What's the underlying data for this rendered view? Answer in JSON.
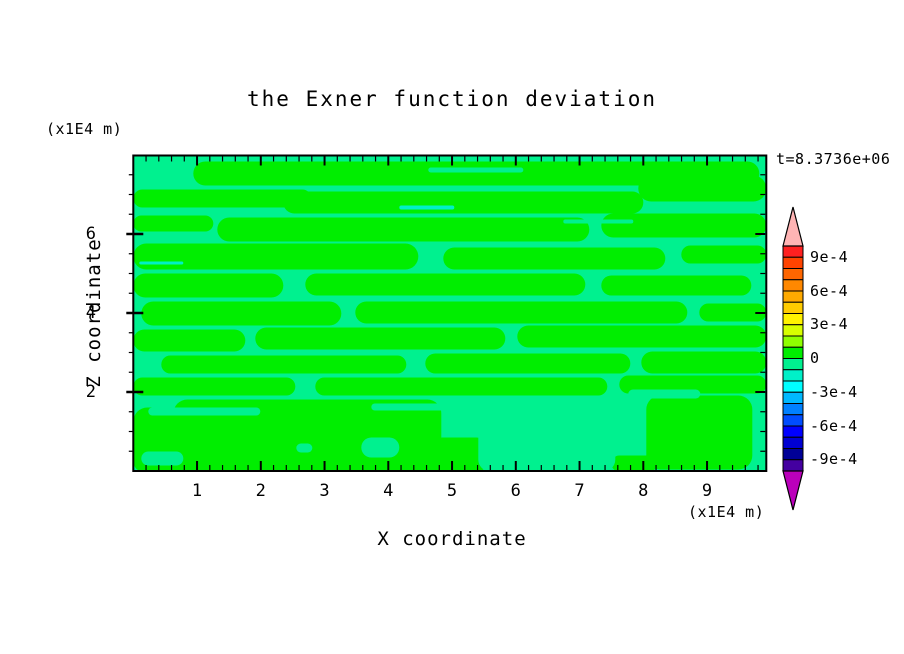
{
  "chart_data": {
    "type": "filled-contour",
    "title": "the Exner function deviation",
    "time_label": "t=8.3736e+06",
    "xlabel": "X coordinate",
    "ylabel": "Z coordinate",
    "x_unit_label": "(x1E4 m)",
    "y_unit_label": "(x1E4 m)",
    "xlim": [
      0,
      9.93
    ],
    "ylim": [
      0,
      8.0
    ],
    "x_major_ticks": [
      1,
      2,
      3,
      4,
      5,
      6,
      7,
      8,
      9
    ],
    "x_minor_step": 0.2,
    "y_major_ticks": [
      2,
      4,
      6
    ],
    "y_minor_step": 0.5,
    "grid": false,
    "legend_position": "right-colorbar",
    "colorbar": {
      "labels": [
        {
          "text": "9e-4",
          "value": 0.0009
        },
        {
          "text": "6e-4",
          "value": 0.0006
        },
        {
          "text": "3e-4",
          "value": 0.0003
        },
        {
          "text": "0",
          "value": 0
        },
        {
          "text": "-3e-4",
          "value": -0.0003
        },
        {
          "text": "-6e-4",
          "value": -0.0006
        },
        {
          "text": "-9e-4",
          "value": -0.0009
        }
      ],
      "top_value": 0.001,
      "bottom_value": -0.001,
      "segment_step": 0.0001,
      "colors_top_to_bottom": [
        "#ff2020",
        "#ff4300",
        "#ff6600",
        "#ff8800",
        "#ffaa00",
        "#ffcc00",
        "#fff200",
        "#d8ff00",
        "#8fff00",
        "#00ee00",
        "#00f18f",
        "#00f0c8",
        "#00ffff",
        "#00b8ff",
        "#0080ff",
        "#004cff",
        "#0000ff",
        "#0000d2",
        "#000096",
        "#4400a0"
      ],
      "over_arrow_color": "#ffb4b4",
      "under_arrow_color": "#bb00bb"
    },
    "field_description": "Mostly near-zero deviation: spring-green background (0 to -1e-4) with elongated bright-green horizontal streaks (0 to +1e-4); greener solid band along the bottom with spring-green blobs; a few thin aquamarine slivers.",
    "pattern": {
      "background_color": "#00f18f",
      "streak_color": "#00ee00",
      "sliver_color": "#00f0c8",
      "green_shapes": [
        [
          60,
          6,
          566,
          24
        ],
        [
          0,
          34,
          178,
          18
        ],
        [
          150,
          36,
          360,
          22
        ],
        [
          505,
          20,
          128,
          26
        ],
        [
          0,
          60,
          80,
          16
        ],
        [
          84,
          62,
          372,
          24
        ],
        [
          468,
          58,
          165,
          24
        ],
        [
          0,
          88,
          285,
          26
        ],
        [
          310,
          92,
          222,
          22
        ],
        [
          548,
          90,
          85,
          18
        ],
        [
          0,
          118,
          150,
          24
        ],
        [
          172,
          118,
          280,
          22
        ],
        [
          468,
          120,
          150,
          20
        ],
        [
          8,
          146,
          200,
          24
        ],
        [
          222,
          146,
          332,
          22
        ],
        [
          566,
          148,
          67,
          18
        ],
        [
          0,
          174,
          112,
          22
        ],
        [
          122,
          172,
          250,
          22
        ],
        [
          384,
          170,
          249,
          22
        ],
        [
          28,
          200,
          245,
          18
        ],
        [
          292,
          198,
          205,
          20
        ],
        [
          508,
          196,
          125,
          22
        ],
        [
          0,
          222,
          162,
          18
        ],
        [
          182,
          222,
          292,
          18
        ],
        [
          486,
          220,
          147,
          18
        ],
        [
          0,
          252,
          58,
          62
        ],
        [
          40,
          244,
          268,
          70
        ],
        [
          513,
          240,
          106,
          74
        ],
        [
          295,
          282,
          62,
          34
        ],
        [
          0,
          296,
          352,
          20
        ],
        [
          478,
          300,
          46,
          16
        ]
      ],
      "mint_shapes": [
        [
          295,
          12,
          95,
          5
        ],
        [
          430,
          64,
          70,
          4
        ],
        [
          15,
          252,
          112,
          8
        ],
        [
          238,
          248,
          124,
          7
        ],
        [
          345,
          256,
          137,
          60
        ],
        [
          8,
          296,
          42,
          14
        ],
        [
          163,
          288,
          16,
          9
        ],
        [
          228,
          282,
          38,
          20
        ],
        [
          495,
          234,
          72,
          9
        ]
      ],
      "sliver_shapes": [
        [
          266,
          50,
          55,
          4
        ],
        [
          6,
          106,
          44,
          3
        ]
      ]
    }
  }
}
